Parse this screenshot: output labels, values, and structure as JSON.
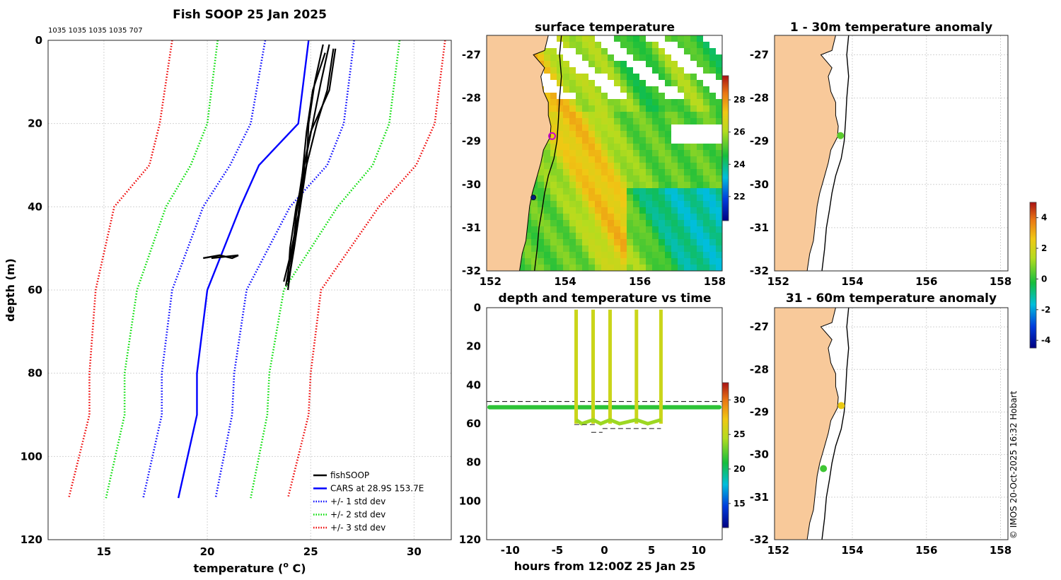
{
  "chart_data": [
    {
      "type": "line",
      "title": "Fish SOOP 25 Jan 2025",
      "subtitle": "1035 1035 1035 1035 707",
      "xlabel": "temperature (",
      "xlabel_sup": "o",
      "xlabel_tail": " C)",
      "ylabel": "depth (m)",
      "xlim": [
        12.3,
        31.8
      ],
      "ylim": [
        0,
        120
      ],
      "y_reversed": true,
      "xticks": [
        15,
        20,
        25,
        30
      ],
      "yticks": [
        0,
        20,
        40,
        60,
        80,
        100,
        120
      ],
      "grid": true,
      "legend": {
        "position": "bottom-right",
        "entries": [
          {
            "label": "fishSOOP",
            "color": "#000000",
            "style": "solid"
          },
          {
            "label": "CARS at 28.9S 153.7E",
            "color": "#0000ff",
            "style": "solid"
          },
          {
            "label": "+/- 1 std dev",
            "color": "#0000ff",
            "style": "dotted"
          },
          {
            "label": "+/- 2 std dev",
            "color": "#00dd00",
            "style": "dotted"
          },
          {
            "label": "+/- 3 std dev",
            "color": "#ee0000",
            "style": "dotted"
          }
        ]
      },
      "depth": [
        0,
        20,
        30,
        40,
        60,
        80,
        90,
        110
      ],
      "series": [
        {
          "name": "CARS",
          "color": "#0000ff",
          "style": "solid",
          "temps": [
            24.9,
            24.4,
            22.5,
            21.6,
            20.0,
            19.5,
            19.5,
            18.6
          ]
        },
        {
          "name": "-1 std",
          "color": "#0000ff",
          "style": "dotted",
          "temps": [
            22.8,
            22.1,
            21.1,
            19.8,
            18.3,
            17.8,
            17.8,
            16.9
          ]
        },
        {
          "name": "+1 std",
          "color": "#0000ff",
          "style": "dotted",
          "temps": [
            27.1,
            26.6,
            25.8,
            24.0,
            21.9,
            21.3,
            21.2,
            20.4
          ]
        },
        {
          "name": "-2 std",
          "color": "#00dd00",
          "style": "dotted",
          "temps": [
            20.5,
            20.0,
            19.2,
            18.0,
            16.6,
            16.0,
            16.0,
            15.1
          ]
        },
        {
          "name": "+2 std",
          "color": "#00dd00",
          "style": "dotted",
          "temps": [
            29.3,
            28.8,
            28.0,
            26.3,
            23.7,
            23.0,
            22.9,
            22.1
          ]
        },
        {
          "name": "-3 std",
          "color": "#ee0000",
          "style": "dotted",
          "temps": [
            18.3,
            17.7,
            17.2,
            15.5,
            14.6,
            14.3,
            14.3,
            13.3
          ]
        },
        {
          "name": "+3 std",
          "color": "#ee0000",
          "style": "dotted",
          "temps": [
            31.5,
            31.0,
            30.1,
            28.3,
            25.5,
            25.0,
            24.9,
            23.9
          ]
        }
      ],
      "fish_profiles": [
        {
          "depth": [
            1,
            10,
            20,
            30,
            40,
            50,
            59
          ],
          "temps": [
            25.6,
            25.2,
            24.9,
            24.8,
            24.5,
            24.2,
            23.9
          ]
        },
        {
          "depth": [
            1,
            10,
            20,
            30,
            40,
            50,
            59
          ],
          "temps": [
            25.9,
            25.5,
            25.1,
            24.7,
            24.5,
            24.1,
            23.8
          ]
        },
        {
          "depth": [
            2,
            12,
            20,
            30,
            40,
            50,
            58
          ],
          "temps": [
            26.1,
            25.8,
            25.3,
            24.8,
            24.3,
            24.0,
            23.9
          ]
        },
        {
          "depth": [
            2,
            12,
            22,
            32,
            42,
            52,
            60
          ],
          "temps": [
            26.2,
            25.9,
            25.0,
            24.6,
            24.3,
            24.1,
            23.9
          ]
        },
        {
          "depth": [
            3,
            12,
            22,
            32,
            42,
            52,
            58
          ],
          "temps": [
            25.7,
            25.1,
            24.8,
            24.6,
            24.4,
            24.0,
            23.7
          ]
        }
      ],
      "bottom_track": {
        "depth": [
          52,
          52,
          52,
          52,
          52
        ],
        "temps": [
          19.8,
          20.6,
          21.2,
          21.5,
          20.2
        ]
      }
    },
    {
      "type": "heatmap",
      "title": "surface temperature",
      "xticks": [
        152,
        154,
        156,
        158
      ],
      "yticks": [
        -27,
        -28,
        -29,
        -30,
        -31,
        -32
      ],
      "xlim": [
        151.9,
        158.2
      ],
      "ylim": [
        -32.0,
        -26.55
      ],
      "colorbar_ticks": [
        22,
        24,
        26,
        28
      ],
      "colorbar_range": [
        20.5,
        29.5
      ],
      "markers": [
        {
          "lon": 153.65,
          "lat": -28.88,
          "color": "#cc00cc",
          "shape": "ring"
        },
        {
          "lon": 153.15,
          "lat": -30.3,
          "color": "#002080",
          "shape": "dot"
        }
      ]
    },
    {
      "type": "scatter",
      "title": "depth and temperature vs time",
      "xlabel": "hours from 12:00Z 25 Jan 25",
      "xticks": [
        -10,
        -5,
        0,
        5,
        10
      ],
      "yticks": [
        0,
        20,
        40,
        60,
        80,
        100,
        120
      ],
      "xlim": [
        -12.5,
        12.5
      ],
      "ylim": [
        0,
        120
      ],
      "y_reversed": true,
      "colorbar_ticks": [
        15,
        20,
        25,
        30
      ],
      "colorbar_range": [
        11.5,
        32.5
      ],
      "dive_times": [
        -3.0,
        -1.2,
        0.6,
        3.4,
        6.0
      ],
      "surface_depth": 1,
      "bottom_depth": 60,
      "surface_temp": 25.5,
      "bottom_temp": 24.0,
      "dashed_line_depth": 48.5,
      "track_depth": 51.5,
      "track_temp": 21.5,
      "segment_depths": [
        60.5,
        62.5,
        64.5
      ]
    },
    {
      "type": "scatter",
      "title": "1 - 30m temperature anomaly",
      "xticks": [
        152,
        154,
        156,
        158
      ],
      "yticks": [
        -27,
        -28,
        -29,
        -30,
        -31,
        -32
      ],
      "xlim": [
        151.9,
        158.2
      ],
      "ylim": [
        -32.0,
        -26.55
      ],
      "colorbar_ticks": [
        4,
        2,
        0,
        -2,
        -4
      ],
      "colorbar_range": [
        -4.5,
        5.0
      ],
      "points": [
        {
          "lon": 153.68,
          "lat": -28.87,
          "anomaly": 0.5
        }
      ]
    },
    {
      "type": "scatter",
      "title": "31 - 60m temperature anomaly",
      "xticks": [
        152,
        154,
        156,
        158
      ],
      "yticks": [
        -27,
        -28,
        -29,
        -30,
        -31,
        -32
      ],
      "xlim": [
        151.9,
        158.2
      ],
      "ylim": [
        -32.0,
        -26.55
      ],
      "points": [
        {
          "lon": 153.7,
          "lat": -28.85,
          "anomaly": 2.5
        },
        {
          "lon": 153.22,
          "lat": -30.33,
          "anomaly": 0.2
        }
      ]
    }
  ],
  "footer": {
    "credit": "© IMOS 20-Oct-2025 16:32 Hobart"
  }
}
